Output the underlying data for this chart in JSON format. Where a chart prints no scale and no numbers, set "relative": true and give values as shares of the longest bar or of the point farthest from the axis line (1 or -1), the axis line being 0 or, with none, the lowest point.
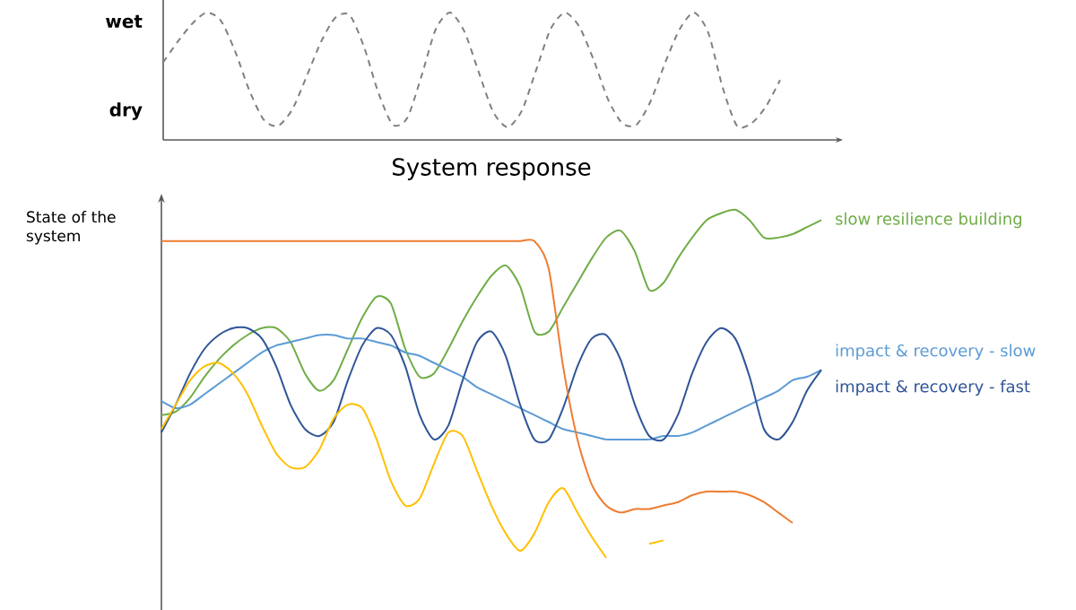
{
  "chart_data": [
    {
      "type": "line",
      "relative": true,
      "annotations": [
        "wet",
        "dry"
      ],
      "categories": [
        null,
        null,
        null,
        null,
        null,
        null,
        null,
        null,
        null,
        null,
        null,
        null,
        null,
        null,
        null,
        null,
        null,
        null,
        null,
        null,
        null,
        null,
        null,
        null,
        null,
        null,
        null,
        null,
        null,
        null,
        null,
        null,
        null,
        null,
        null,
        null,
        null,
        null,
        null,
        null,
        null,
        null,
        null,
        null
      ],
      "values": [
        0.61,
        0.77,
        0.91,
        1.0,
        0.94,
        0.7,
        0.39,
        0.16,
        0.11,
        0.24,
        0.5,
        0.77,
        0.96,
        0.98,
        0.73,
        0.37,
        0.12,
        0.17,
        0.5,
        0.87,
        1.0,
        0.85,
        0.53,
        0.22,
        0.1,
        0.23,
        0.55,
        0.87,
        1,
        0.89,
        0.63,
        0.32,
        0.13,
        0.12,
        0.31,
        0.61,
        0.87,
        1.0,
        0.84,
        0.41,
        0.11,
        0.13,
        0.26,
        0.47
      ],
      "color": "#808080",
      "line_style": "dashed"
    },
    {
      "type": "line",
      "title": "System response",
      "ylabel": "State of the system",
      "relative": true,
      "line_style": "solid",
      "categories": [
        null,
        null,
        null,
        null,
        null,
        null,
        null,
        null,
        null,
        null,
        null,
        null,
        null,
        null,
        null,
        null,
        null,
        null,
        null,
        null,
        null,
        null,
        null,
        null,
        null,
        null,
        null,
        null,
        null,
        null,
        null,
        null,
        null,
        null,
        null,
        null,
        null,
        null,
        null,
        null,
        null,
        null,
        null,
        null,
        null,
        null,
        null
      ],
      "series": [
        {
          "name": "slow resilience building",
          "color": "#70ad47",
          "values": [
            0.41,
            0.42,
            0.46,
            0.52,
            0.57,
            0.61,
            0.64,
            0.66,
            0.66,
            0.62,
            0.53,
            0.48,
            0.51,
            0.6,
            0.69,
            0.75,
            0.73,
            0.6,
            0.52,
            0.53,
            0.6,
            0.68,
            0.75,
            0.81,
            0.84,
            0.78,
            0.65,
            0.65,
            0.72,
            0.79,
            0.86,
            0.92,
            0.94,
            0.88,
            0.77,
            0.79,
            0.86,
            0.92,
            0.97,
            0.99,
            1,
            0.97,
            0.92,
            0.92,
            0.93,
            0.95,
            0.97
          ]
        },
        {
          "name": "impact & recovery - slow",
          "color": "#5b9bd5",
          "values": [
            0.45,
            0.43,
            0.44,
            0.47,
            0.5,
            0.53,
            0.56,
            0.59,
            0.61,
            0.62,
            0.63,
            0.64,
            0.64,
            0.63,
            0.63,
            0.62,
            0.61,
            0.59,
            0.58,
            0.56,
            0.54,
            0.52,
            0.49,
            0.47,
            0.45,
            0.43,
            0.41,
            0.39,
            0.37,
            0.36,
            0.35,
            0.34,
            0.34,
            0.34,
            0.34,
            0.35,
            0.35,
            0.36,
            0.38,
            0.4,
            0.42,
            0.44,
            0.46,
            0.48,
            0.51,
            0.52,
            0.54
          ]
        },
        {
          "name": "impact & recovery - fast",
          "color": "#2f5597",
          "values": [
            0.36,
            0.44,
            0.53,
            0.6,
            0.64,
            0.66,
            0.66,
            0.63,
            0.55,
            0.44,
            0.37,
            0.35,
            0.39,
            0.51,
            0.61,
            0.66,
            0.64,
            0.55,
            0.41,
            0.34,
            0.38,
            0.51,
            0.62,
            0.65,
            0.58,
            0.44,
            0.34,
            0.34,
            0.43,
            0.55,
            0.63,
            0.64,
            0.57,
            0.44,
            0.35,
            0.34,
            0.41,
            0.53,
            0.62,
            0.66,
            0.63,
            0.52,
            0.37,
            0.34,
            0.39,
            0.48,
            0.54
          ]
        },
        {
          "color": "#ed7d31",
          "values": [
            0.91,
            0.91,
            0.91,
            0.91,
            0.91,
            0.91,
            0.91,
            0.91,
            0.91,
            0.91,
            0.91,
            0.91,
            0.91,
            0.91,
            0.91,
            0.91,
            0.91,
            0.91,
            0.91,
            0.91,
            0.91,
            0.91,
            0.91,
            0.91,
            0.91,
            0.91,
            0.91,
            0.83,
            0.55,
            0.34,
            0.21,
            0.15,
            0.13,
            0.14,
            0.14,
            0.15,
            0.16,
            0.18,
            0.19,
            0.19,
            0.19,
            0.18,
            0.16,
            0.13,
            0.1,
            null,
            null
          ]
        },
        {
          "color": "#ffc000",
          "values": [
            0.37,
            0.44,
            0.51,
            0.55,
            0.56,
            0.53,
            0.47,
            0.38,
            0.3,
            0.26,
            0.26,
            0.31,
            0.4,
            0.44,
            0.43,
            0.34,
            0.22,
            0.15,
            0.17,
            0.27,
            0.36,
            0.35,
            0.25,
            0.15,
            0.07,
            0.02,
            0.07,
            0.16,
            0.2,
            0.13,
            0.06,
            0,
            null,
            null,
            0.04,
            0.05,
            null,
            null,
            null,
            null,
            null,
            null,
            null,
            null,
            null,
            null,
            null
          ]
        }
      ]
    }
  ]
}
